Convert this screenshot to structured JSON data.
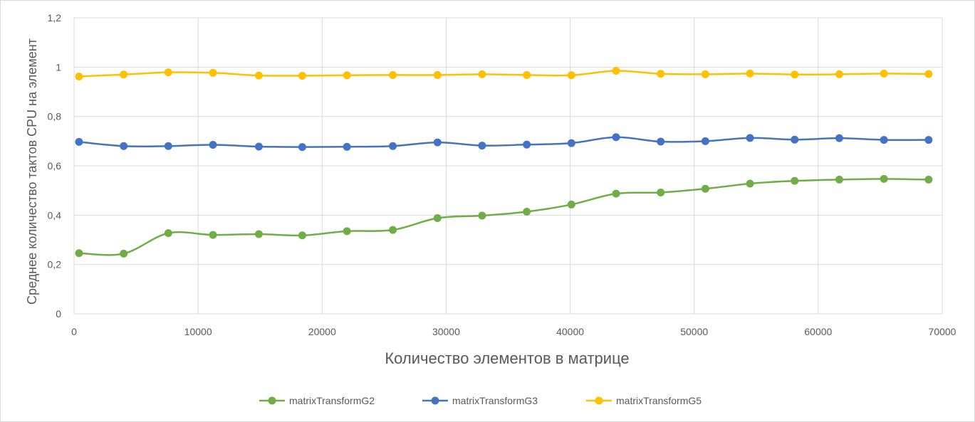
{
  "chart_data": {
    "type": "line",
    "title": "",
    "xlabel": "Количество элементов в матрице",
    "ylabel": "Среднее количество тактов CPU на элемент",
    "xlim": [
      0,
      70000
    ],
    "ylim": [
      0,
      1.2
    ],
    "xticks": [
      "0",
      "10000",
      "20000",
      "30000",
      "40000",
      "50000",
      "60000",
      "70000"
    ],
    "yticks": [
      "0",
      "0,2",
      "0,4",
      "0,6",
      "0,8",
      "1",
      "1,2"
    ],
    "grid": true,
    "legend_position": "bottom",
    "x": [
      400,
      4000,
      7600,
      11200,
      14900,
      18400,
      22000,
      25700,
      29300,
      32900,
      36500,
      40100,
      43700,
      47300,
      50900,
      54500,
      58100,
      61700,
      65300,
      68900
    ],
    "series": [
      {
        "name": "matrixTransformG2",
        "color": "#70AD47",
        "values": [
          0.246,
          0.244,
          0.327,
          0.32,
          0.323,
          0.318,
          0.335,
          0.34,
          0.388,
          0.398,
          0.414,
          0.443,
          0.487,
          0.492,
          0.507,
          0.528,
          0.539,
          0.544,
          0.547,
          0.544
        ]
      },
      {
        "name": "matrixTransformG3",
        "color": "#4472C4",
        "values": [
          0.697,
          0.68,
          0.68,
          0.685,
          0.678,
          0.676,
          0.677,
          0.68,
          0.695,
          0.682,
          0.686,
          0.692,
          0.716,
          0.698,
          0.7,
          0.713,
          0.706,
          0.712,
          0.705,
          0.705
        ]
      },
      {
        "name": "matrixTransformG5",
        "color": "#FFC000",
        "values": [
          0.962,
          0.97,
          0.979,
          0.977,
          0.966,
          0.965,
          0.967,
          0.968,
          0.968,
          0.971,
          0.968,
          0.967,
          0.985,
          0.973,
          0.971,
          0.974,
          0.97,
          0.971,
          0.974,
          0.972
        ]
      }
    ]
  }
}
